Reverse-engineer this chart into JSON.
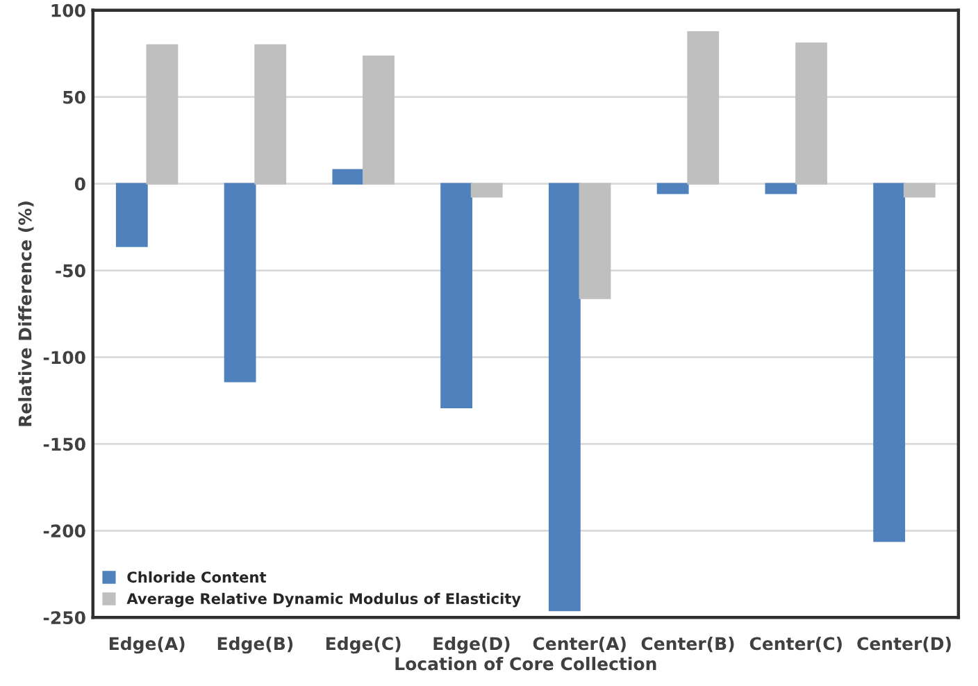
{
  "chart_data": {
    "type": "bar",
    "xlabel": "Location of Core Collection",
    "ylabel": "Relative Difference (%)",
    "categories": [
      "Edge(A)",
      "Edge(B)",
      "Edge(C)",
      "Edge(D)",
      "Center(A)",
      "Center(B)",
      "Center(C)",
      "Center(D)"
    ],
    "series": [
      {
        "name": "Chloride Content",
        "color": "#4f81bd",
        "values": [
          -36,
          -114,
          8,
          -129,
          -246,
          -5.5,
          -5.5,
          -206
        ]
      },
      {
        "name": "Average Relative Dynamic Modulus of Elasticity",
        "color": "#bfbfbf",
        "values": [
          80,
          80,
          73.5,
          -7.5,
          -66,
          87.5,
          81,
          -7.5
        ]
      }
    ],
    "ylim": [
      -250,
      100
    ],
    "yticks": [
      -250,
      -200,
      -150,
      -100,
      -50,
      0,
      50,
      100
    ],
    "grid": "y",
    "legend": "bottom left"
  }
}
